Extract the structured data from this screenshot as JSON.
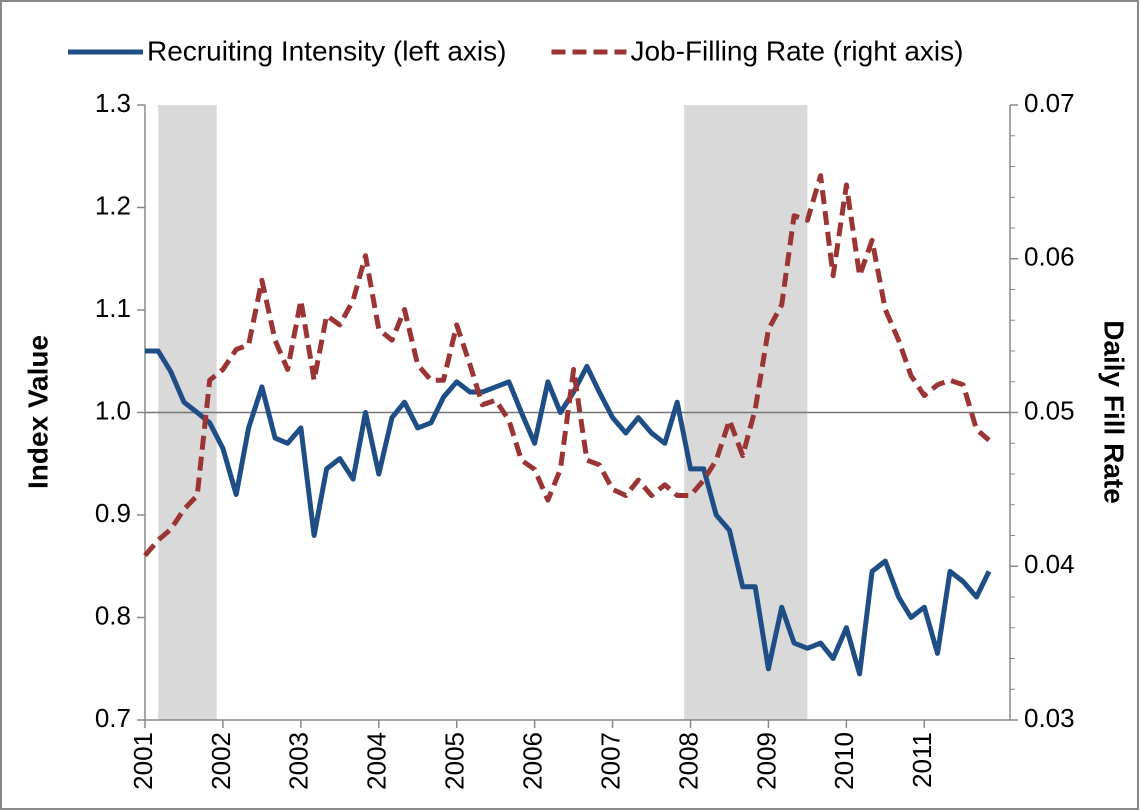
{
  "chart_data": {
    "type": "line",
    "x": [
      2001.0,
      2001.17,
      2001.33,
      2001.5,
      2001.67,
      2001.83,
      2002.0,
      2002.17,
      2002.33,
      2002.5,
      2002.67,
      2002.83,
      2003.0,
      2003.17,
      2003.33,
      2003.5,
      2003.67,
      2003.83,
      2004.0,
      2004.17,
      2004.33,
      2004.5,
      2004.67,
      2004.83,
      2005.0,
      2005.17,
      2005.33,
      2005.5,
      2005.67,
      2005.83,
      2006.0,
      2006.17,
      2006.33,
      2006.5,
      2006.67,
      2006.83,
      2007.0,
      2007.17,
      2007.33,
      2007.5,
      2007.67,
      2007.83,
      2008.0,
      2008.17,
      2008.33,
      2008.5,
      2008.67,
      2008.83,
      2009.0,
      2009.17,
      2009.33,
      2009.5,
      2009.67,
      2009.83,
      2010.0,
      2010.17,
      2010.33,
      2010.5,
      2010.67,
      2010.83,
      2011.0,
      2011.17,
      2011.33,
      2011.5,
      2011.67,
      2011.83
    ],
    "series": [
      {
        "name": "Recruiting Intensity (left axis)",
        "color": "#1f4e86",
        "axis": "y",
        "dash": false,
        "values": [
          1.06,
          1.06,
          1.04,
          1.01,
          1.0,
          0.99,
          0.965,
          0.92,
          0.985,
          1.025,
          0.975,
          0.97,
          0.985,
          0.88,
          0.945,
          0.955,
          0.935,
          1.0,
          0.94,
          0.995,
          1.01,
          0.985,
          0.99,
          1.015,
          1.03,
          1.02,
          1.02,
          1.025,
          1.03,
          1.0,
          0.97,
          1.03,
          1.0,
          1.02,
          1.045,
          1.02,
          0.995,
          0.98,
          0.995,
          0.98,
          0.97,
          1.01,
          0.945,
          0.945,
          0.9,
          0.885,
          0.83,
          0.83,
          0.75,
          0.81,
          0.775,
          0.77,
          0.775,
          0.76,
          0.79,
          0.745,
          0.845,
          0.855,
          0.82,
          0.8,
          0.81,
          0.765,
          0.845,
          0.835,
          0.82,
          0.845
        ]
      },
      {
        "name": "Job-Filling Rate (right axis)",
        "color": "#9b3535",
        "axis": "y2",
        "dash": true,
        "values": [
          0.0407,
          0.0417,
          0.0424,
          0.0437,
          0.0446,
          0.0521,
          0.0528,
          0.0541,
          0.0544,
          0.0586,
          0.0547,
          0.0528,
          0.0573,
          0.0521,
          0.0563,
          0.0557,
          0.0573,
          0.0602,
          0.0554,
          0.0547,
          0.0567,
          0.0531,
          0.0521,
          0.0521,
          0.0557,
          0.0531,
          0.0505,
          0.0508,
          0.0495,
          0.0469,
          0.0463,
          0.0443,
          0.0463,
          0.0528,
          0.0469,
          0.0466,
          0.045,
          0.0446,
          0.0456,
          0.0446,
          0.0453,
          0.0446,
          0.0446,
          0.0456,
          0.0469,
          0.0495,
          0.0472,
          0.0502,
          0.0554,
          0.057,
          0.0628,
          0.0625,
          0.0654,
          0.0589,
          0.0648,
          0.0589,
          0.0612,
          0.0567,
          0.0547,
          0.0524,
          0.0511,
          0.0518,
          0.0521,
          0.0518,
          0.0489,
          0.0482
        ]
      }
    ],
    "y_label": "Index Value",
    "y2_label": "Daily Fill Rate",
    "xlim": [
      2001,
      2012.1
    ],
    "xticks": [
      2001,
      2002,
      2003,
      2004,
      2005,
      2006,
      2007,
      2008,
      2009,
      2010,
      2011
    ],
    "ylim": [
      0.7,
      1.3
    ],
    "yticks": [
      0.7,
      0.8,
      0.9,
      {
        "value": 1,
        "label": "1.0"
      },
      1.1,
      1.2,
      1.3
    ],
    "y2lim": [
      0.03,
      0.07
    ],
    "y2ticks": [
      0.03,
      0.04,
      0.05,
      0.06,
      0.07
    ],
    "reference_line": 1,
    "shaded_periods": [
      [
        2001.17,
        2001.92
      ],
      [
        2007.92,
        2009.5
      ]
    ],
    "shade_color": "#d9d9d9",
    "legend": "top"
  }
}
